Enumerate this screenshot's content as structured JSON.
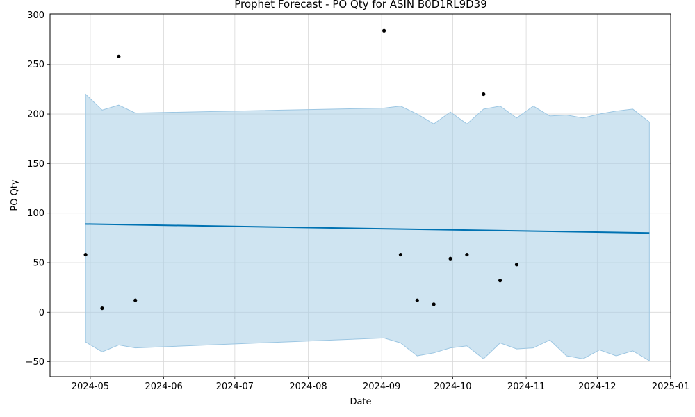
{
  "chart_data": {
    "type": "line",
    "title": "Prophet Forecast - PO Qty for ASIN B0D1RL9D39",
    "xlabel": "Date",
    "ylabel": "PO Qty",
    "xlim": [
      "2024-04-14",
      "2025-01-01"
    ],
    "ylim": [
      -65,
      301
    ],
    "grid": true,
    "x_ticks": [
      "2024-05-01",
      "2024-06-01",
      "2024-07-01",
      "2024-08-01",
      "2024-09-01",
      "2024-10-01",
      "2024-11-01",
      "2024-12-01",
      "2025-01-01"
    ],
    "x_tick_labels": [
      "2024-05",
      "2024-06",
      "2024-07",
      "2024-08",
      "2024-09",
      "2024-10",
      "2024-11",
      "2024-12",
      "2025-01"
    ],
    "y_ticks": [
      -50,
      0,
      50,
      100,
      150,
      200,
      250,
      300
    ],
    "y_tick_labels": [
      "−50",
      "0",
      "50",
      "100",
      "150",
      "200",
      "250",
      "300"
    ],
    "colors": {
      "forecast": "#0072B2",
      "band": "#a7cde6",
      "band_edge": "#9cc6e2",
      "points": "#000000",
      "grid": "#d8d8d8"
    },
    "actuals": [
      {
        "x": "2024-04-29",
        "y": 58
      },
      {
        "x": "2024-05-06",
        "y": 4
      },
      {
        "x": "2024-05-13",
        "y": 258
      },
      {
        "x": "2024-05-20",
        "y": 12
      },
      {
        "x": "2024-09-02",
        "y": 284
      },
      {
        "x": "2024-09-09",
        "y": 58
      },
      {
        "x": "2024-09-16",
        "y": 12
      },
      {
        "x": "2024-09-23",
        "y": 8
      },
      {
        "x": "2024-09-30",
        "y": 54
      },
      {
        "x": "2024-10-07",
        "y": 58
      },
      {
        "x": "2024-10-14",
        "y": 220
      },
      {
        "x": "2024-10-21",
        "y": 32
      },
      {
        "x": "2024-10-28",
        "y": 48
      }
    ],
    "forecast": [
      {
        "x": "2024-04-29",
        "y": 89
      },
      {
        "x": "2024-12-23",
        "y": 80
      }
    ],
    "interval": [
      {
        "x": "2024-04-29",
        "upper": 220,
        "lower": -30
      },
      {
        "x": "2024-05-06",
        "upper": 204,
        "lower": -40
      },
      {
        "x": "2024-05-13",
        "upper": 209,
        "lower": -33
      },
      {
        "x": "2024-05-20",
        "upper": 201,
        "lower": -36
      },
      {
        "x": "2024-09-02",
        "upper": 206,
        "lower": -26
      },
      {
        "x": "2024-09-09",
        "upper": 208,
        "lower": -31
      },
      {
        "x": "2024-09-16",
        "upper": 200,
        "lower": -44
      },
      {
        "x": "2024-09-23",
        "upper": 190,
        "lower": -41
      },
      {
        "x": "2024-09-30",
        "upper": 202,
        "lower": -36
      },
      {
        "x": "2024-10-07",
        "upper": 190,
        "lower": -34
      },
      {
        "x": "2024-10-14",
        "upper": 205,
        "lower": -47
      },
      {
        "x": "2024-10-21",
        "upper": 208,
        "lower": -31
      },
      {
        "x": "2024-10-28",
        "upper": 196,
        "lower": -37
      },
      {
        "x": "2024-11-04",
        "upper": 208,
        "lower": -36
      },
      {
        "x": "2024-11-11",
        "upper": 198,
        "lower": -28
      },
      {
        "x": "2024-11-18",
        "upper": 199,
        "lower": -44
      },
      {
        "x": "2024-11-25",
        "upper": 196,
        "lower": -47
      },
      {
        "x": "2024-12-02",
        "upper": 200,
        "lower": -38
      },
      {
        "x": "2024-12-09",
        "upper": 203,
        "lower": -44
      },
      {
        "x": "2024-12-16",
        "upper": 205,
        "lower": -39
      },
      {
        "x": "2024-12-23",
        "upper": 192,
        "lower": -49
      }
    ]
  }
}
